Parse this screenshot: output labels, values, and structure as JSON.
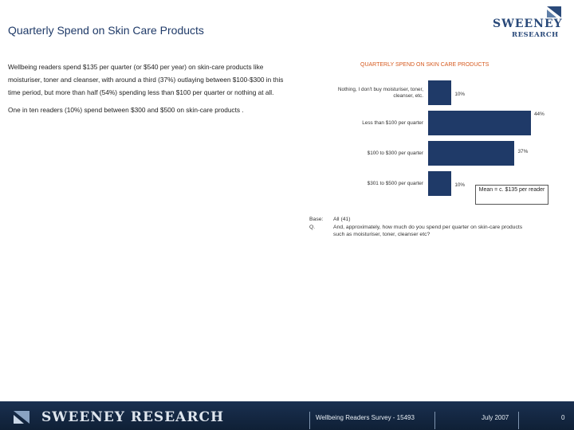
{
  "page_title": "Quarterly Spend on Skin Care Products",
  "logo": {
    "line1": "SWEENEY",
    "line2": "RESEARCH"
  },
  "intro": {
    "paragraph1": "Wellbeing readers spend $135 per quarter (or $540 per year) on skin-care products like moisturiser, toner and cleanser, with around a third (37%) outlaying between $100-$300 in this time period, but more than half (54%) spending less than $100 per quarter or nothing at all.",
    "paragraph2": "One in ten readers (10%) spend between $300 and $500 on skin-care products ."
  },
  "chart_data": {
    "type": "bar",
    "orientation": "horizontal",
    "title": "QUARTERLY SPEND ON SKIN CARE PRODUCTS",
    "categories": [
      "Nothing, I don't buy moisturiser, toner, cleanser, etc.",
      "Less than $100 per quarter",
      "$100 to $300 per quarter",
      "$301 to $500 per quarter"
    ],
    "values": [
      10,
      44,
      37,
      10
    ],
    "value_labels": [
      "10%",
      "44%",
      "37%",
      "10%"
    ],
    "xlim": [
      0,
      44
    ],
    "annotation": "Mean = c. $135 per reader",
    "color": "#1f3a68"
  },
  "base": {
    "base_label": "Base:",
    "base_value": "All (41)",
    "q_label": "Q.",
    "q_line1": "And, approximately, how much do you spend per quarter on skin-care products",
    "q_line2": "such as moisturiser, toner, cleanser etc?"
  },
  "footer": {
    "brand": "SWEENEY RESEARCH",
    "survey": "Wellbeing Readers Survey - 15493",
    "date": "July 2007",
    "page": "0"
  },
  "colors": {
    "accent": "#d65a1f",
    "bar": "#1f3a68",
    "title": "#1f3a68"
  }
}
